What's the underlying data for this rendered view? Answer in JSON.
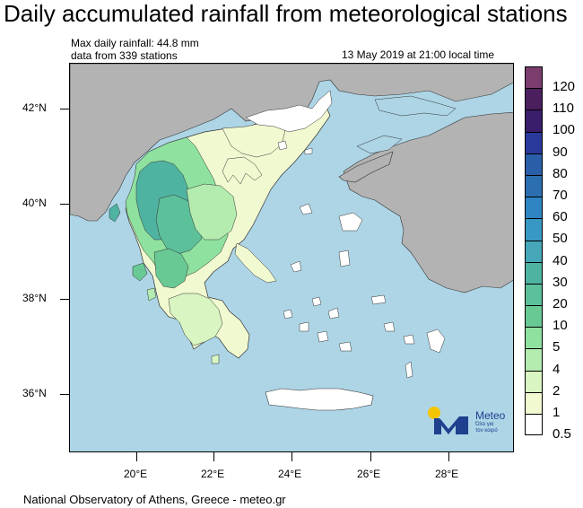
{
  "title": "Daily accumulated rainfall from meteorological stations",
  "info": {
    "max_rainfall": "Max daily rainfall: 44.8 mm",
    "stations": "data from 339 stations",
    "timestamp": "13 May 2019 at 21:00 local time"
  },
  "axes": {
    "lat_labels": [
      "42°N",
      "40°N",
      "38°N",
      "36°N"
    ],
    "lon_labels": [
      "20°E",
      "22°E",
      "24°E",
      "26°E",
      "28°E"
    ]
  },
  "legend": {
    "labels": [
      "120",
      "110",
      "100",
      "90",
      "80",
      "70",
      "60",
      "50",
      "40",
      "30",
      "20",
      "10",
      "5",
      "4",
      "2",
      "1",
      "0.5"
    ],
    "colors": [
      "#7a3d6e",
      "#4b1f5e",
      "#3a1d6b",
      "#2a3a9c",
      "#2a5ea9",
      "#2c6fb0",
      "#2f85c4",
      "#3898c4",
      "#46a7b8",
      "#4fb3a2",
      "#5cc09a",
      "#68c995",
      "#8fe19f",
      "#b4ecb0",
      "#d8f5c2",
      "#f1f9d0",
      "#ffffff"
    ],
    "sea_color": "#add5e6",
    "land_other_color": "#b3b3b3"
  },
  "logo": {
    "brand": "Meteo",
    "tagline_1": "Όλα για",
    "tagline_2": "τον καιρό"
  },
  "footer": "National Observatory of Athens, Greece - meteo.gr"
}
